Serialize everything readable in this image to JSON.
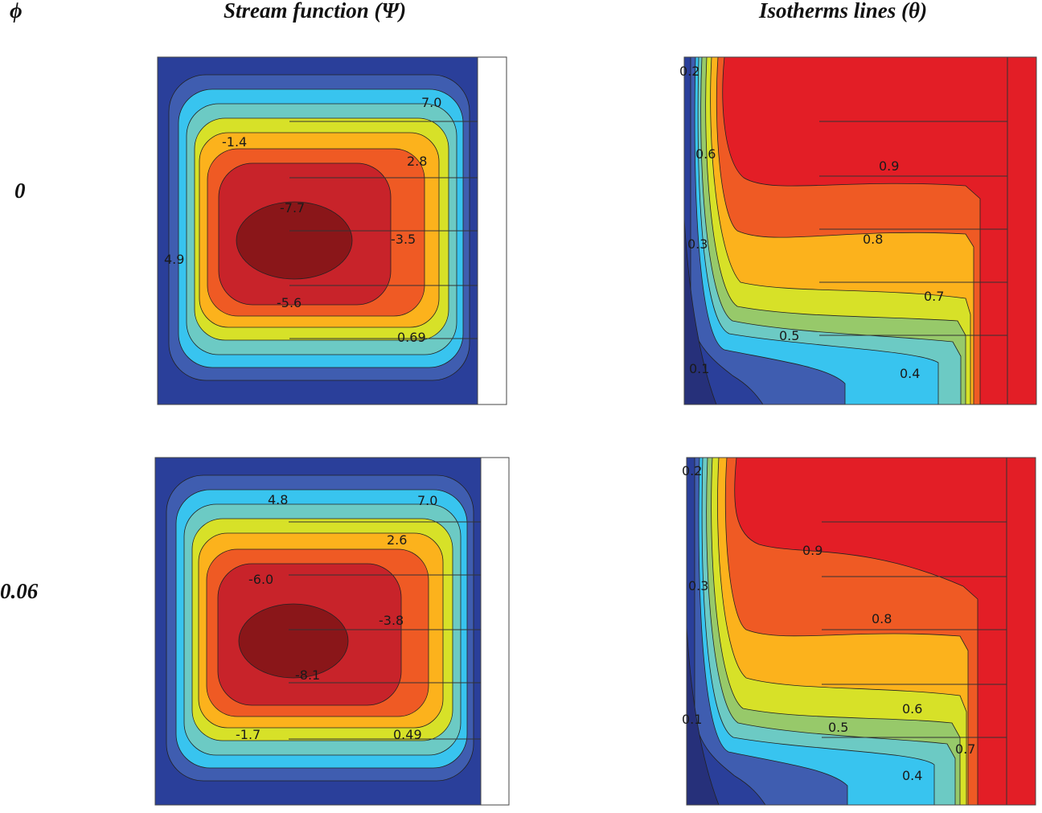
{
  "headers": {
    "phi": "ϕ",
    "stream_prefix": "Stream function (",
    "stream_symbol": "Ψ",
    "stream_suffix": ")",
    "iso_prefix": "Isotherms lines (",
    "iso_symbol": "θ",
    "iso_suffix": ")"
  },
  "rows": [
    {
      "phi_value": "0",
      "stream_labels": [
        "7.0",
        "-1.4",
        "2.8",
        "-7.7",
        "-3.5",
        "4.9",
        "-5.6",
        "0.69"
      ],
      "iso_labels": [
        "0.2",
        "0.6",
        "0.9",
        "0.3",
        "0.8",
        "0.7",
        "0.5",
        "0.1",
        "0.4"
      ]
    },
    {
      "phi_value": "0.06",
      "stream_labels": [
        "4.8",
        "7.0",
        "2.6",
        "-6.0",
        "-3.8",
        "-8.1",
        "-1.7",
        "0.49"
      ],
      "iso_labels": [
        "0.2",
        "0.9",
        "0.3",
        "0.8",
        "0.6",
        "0.1",
        "0.5",
        "0.7",
        "0.4"
      ]
    }
  ],
  "colors": [
    "#2a3f9a",
    "#3f5db0",
    "#2f9bdc",
    "#38c4ef",
    "#6ccac4",
    "#97c96a",
    "#d7e128",
    "#fcb21c",
    "#ef5a24",
    "#c8232a",
    "#8a1619"
  ]
}
